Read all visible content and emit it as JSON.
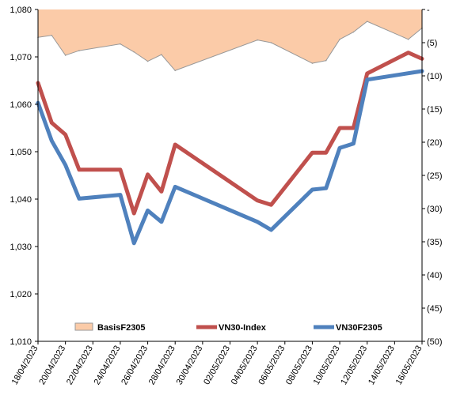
{
  "chart_data": {
    "type": "line",
    "colors": {
      "basis_fill": "#FBCBA8",
      "basis_stroke": "#999999",
      "vn30_index": "#C0504D",
      "vn30f": "#4F81BD",
      "axis": "#000000"
    },
    "left_axis": {
      "ylim": [
        1010,
        1080
      ],
      "ticks": [
        {
          "value": 1080,
          "label": "1,080"
        },
        {
          "value": 1070,
          "label": "1,070"
        },
        {
          "value": 1060,
          "label": "1,060"
        },
        {
          "value": 1050,
          "label": "1,050"
        },
        {
          "value": 1040,
          "label": "1,040"
        },
        {
          "value": 1030,
          "label": "1,030"
        },
        {
          "value": 1020,
          "label": "1,020"
        },
        {
          "value": 1010,
          "label": "1,010"
        }
      ]
    },
    "right_axis": {
      "ylim": [
        0,
        -50
      ],
      "reversed": true,
      "ticks": [
        {
          "value": 0,
          "label": "-"
        },
        {
          "value": -5,
          "label": "(5)"
        },
        {
          "value": -10,
          "label": "(10)"
        },
        {
          "value": -15,
          "label": "(15)"
        },
        {
          "value": -20,
          "label": "(20)"
        },
        {
          "value": -25,
          "label": "(25)"
        },
        {
          "value": -30,
          "label": "(30)"
        },
        {
          "value": -35,
          "label": "(35)"
        },
        {
          "value": -40,
          "label": "(40)"
        },
        {
          "value": -45,
          "label": "(45)"
        },
        {
          "value": -50,
          "label": "(50)"
        }
      ]
    },
    "x_axis": {
      "type": "date",
      "range": [
        "2023-04-18",
        "2023-05-16"
      ],
      "ticks": [
        "2023-04-18",
        "2023-04-20",
        "2023-04-22",
        "2023-04-24",
        "2023-04-26",
        "2023-04-28",
        "2023-04-30",
        "2023-05-02",
        "2023-05-04",
        "2023-05-06",
        "2023-05-08",
        "2023-05-10",
        "2023-05-12",
        "2023-05-14",
        "2023-05-16"
      ],
      "tick_labels": [
        "18/04/2023",
        "20/04/2023",
        "22/04/2023",
        "24/04/2023",
        "26/04/2023",
        "28/04/2023",
        "30/04/2023",
        "02/05/2023",
        "04/05/2023",
        "06/05/2023",
        "08/05/2023",
        "10/05/2023",
        "12/05/2023",
        "14/05/2023",
        "16/05/2023"
      ]
    },
    "legend_position": "bottom",
    "series": [
      {
        "name": "BasisF2305",
        "type": "area",
        "axis": "right",
        "x": [
          "2023-04-18",
          "2023-04-19",
          "2023-04-20",
          "2023-04-21",
          "2023-04-24",
          "2023-04-25",
          "2023-04-26",
          "2023-04-27",
          "2023-04-28",
          "2023-05-04",
          "2023-05-05",
          "2023-05-08",
          "2023-05-09",
          "2023-05-10",
          "2023-05-11",
          "2023-05-12",
          "2023-05-15",
          "2023-05-16"
        ],
        "values": [
          -4.2,
          -3.9,
          -6.9,
          -6.2,
          -5.2,
          -6.4,
          -7.8,
          -6.8,
          -9.2,
          -4.6,
          -5.0,
          -8.1,
          -7.7,
          -4.5,
          -3.4,
          -1.8,
          -4.5,
          -2.8
        ]
      },
      {
        "name": "VN30-Index",
        "type": "line",
        "axis": "left",
        "x": [
          "2023-04-18",
          "2023-04-19",
          "2023-04-20",
          "2023-04-21",
          "2023-04-24",
          "2023-04-25",
          "2023-04-26",
          "2023-04-27",
          "2023-04-28",
          "2023-05-04",
          "2023-05-05",
          "2023-05-08",
          "2023-05-09",
          "2023-05-10",
          "2023-05-11",
          "2023-05-12",
          "2023-05-15",
          "2023-05-16"
        ],
        "values": [
          1064.5,
          1056.1,
          1053.6,
          1046.2,
          1046.2,
          1037.0,
          1045.2,
          1041.6,
          1051.5,
          1039.7,
          1038.8,
          1049.8,
          1049.8,
          1055.0,
          1055.0,
          1066.5,
          1070.9,
          1069.6
        ]
      },
      {
        "name": "VN30F2305",
        "type": "line",
        "axis": "left",
        "x": [
          "2023-04-18",
          "2023-04-19",
          "2023-04-20",
          "2023-04-21",
          "2023-04-24",
          "2023-04-25",
          "2023-04-26",
          "2023-04-27",
          "2023-04-28",
          "2023-05-04",
          "2023-05-05",
          "2023-05-08",
          "2023-05-09",
          "2023-05-10",
          "2023-05-11",
          "2023-05-12",
          "2023-05-16"
        ],
        "values": [
          1060.3,
          1052.3,
          1047.2,
          1040.1,
          1040.9,
          1030.7,
          1037.6,
          1035.2,
          1042.6,
          1035.2,
          1033.5,
          1042.0,
          1042.3,
          1050.8,
          1051.7,
          1065.2,
          1067.0
        ]
      }
    ]
  }
}
